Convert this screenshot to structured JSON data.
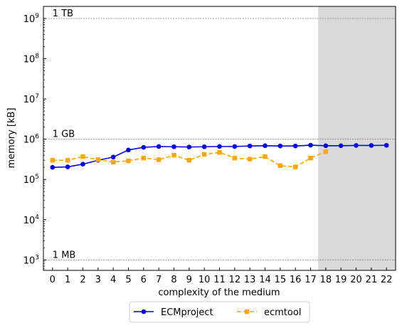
{
  "chart_data": {
    "type": "line",
    "xlabel": "complexity of the medium",
    "ylabel": "memory [kB]",
    "ylabel_unit_open": "[",
    "x": [
      0,
      1,
      2,
      3,
      4,
      5,
      6,
      7,
      8,
      9,
      10,
      11,
      12,
      13,
      14,
      15,
      16,
      17,
      18,
      19,
      20,
      21,
      22
    ],
    "x_tick_labels": [
      "0",
      "1",
      "2",
      "3",
      "4",
      "5",
      "6",
      "7",
      "8",
      "9",
      "10",
      "11",
      "12",
      "13",
      "14",
      "15",
      "16",
      "17",
      "18",
      "19",
      "20",
      "21",
      "22"
    ],
    "xlim": [
      -0.6,
      22.6
    ],
    "yscale": "log",
    "ylim": [
      550,
      2000000000
    ],
    "y_tick_exponents": [
      3,
      4,
      5,
      6,
      7,
      8,
      9
    ],
    "y_tick_base": "10",
    "reference_lines": [
      {
        "value": 1000,
        "label": "1 MB"
      },
      {
        "value": 1000000,
        "label": "1 GB"
      },
      {
        "value": 1000000000,
        "label": "1 TB"
      }
    ],
    "shaded_region": {
      "x_from": 17.5,
      "x_to": 22.6,
      "color": "#d9d9d9"
    },
    "legend_position": "bottom-center-outside",
    "series": [
      {
        "name": "ECMproject",
        "color": "#0000ee",
        "marker": "circle",
        "linestyle": "solid",
        "x": [
          0,
          1,
          2,
          3,
          4,
          5,
          6,
          7,
          8,
          9,
          10,
          11,
          12,
          13,
          14,
          15,
          16,
          17,
          18,
          19,
          20,
          21,
          22
        ],
        "values": [
          200000,
          205000,
          240000,
          300000,
          360000,
          540000,
          630000,
          660000,
          650000,
          640000,
          650000,
          660000,
          660000,
          680000,
          690000,
          680000,
          680000,
          710000,
          690000,
          690000,
          700000,
          700000,
          705000
        ]
      },
      {
        "name": "ecmtool",
        "color": "#ffa500",
        "marker": "square",
        "linestyle": "dashed",
        "x": [
          0,
          1,
          2,
          3,
          4,
          5,
          6,
          7,
          8,
          9,
          10,
          11,
          12,
          13,
          14,
          15,
          16,
          17,
          18
        ],
        "values": [
          300000,
          300000,
          370000,
          310000,
          270000,
          290000,
          340000,
          310000,
          400000,
          300000,
          420000,
          470000,
          340000,
          320000,
          370000,
          220000,
          205000,
          340000,
          490000
        ]
      }
    ]
  }
}
